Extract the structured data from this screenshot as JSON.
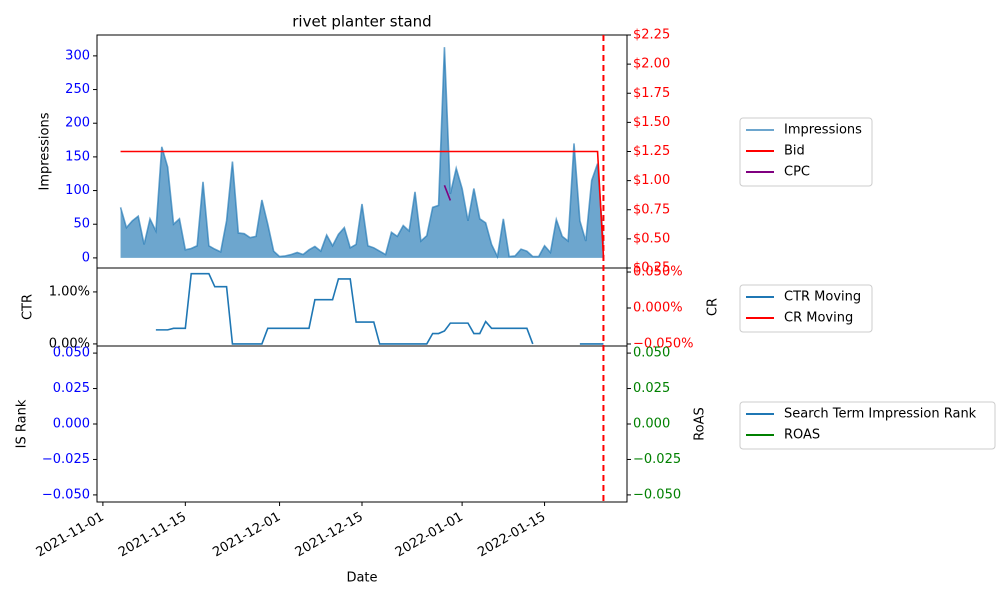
{
  "chart_data": {
    "type": "line",
    "title": "rivet planter stand",
    "xlabel": "Date",
    "xlim": [
      "2021-10-31",
      "2022-01-29"
    ],
    "xticks": [
      "2021-11-01",
      "2021-11-15",
      "2021-12-01",
      "2021-12-15",
      "2022-01-01",
      "2022-01-15"
    ],
    "vline": "2022-01-25",
    "vline_color": "#ff0000",
    "x": [
      "2021-11-04",
      "2021-11-05",
      "2021-11-06",
      "2021-11-07",
      "2021-11-08",
      "2021-11-09",
      "2021-11-10",
      "2021-11-11",
      "2021-11-12",
      "2021-11-13",
      "2021-11-14",
      "2021-11-15",
      "2021-11-16",
      "2021-11-17",
      "2021-11-18",
      "2021-11-19",
      "2021-11-20",
      "2021-11-21",
      "2021-11-22",
      "2021-11-23",
      "2021-11-24",
      "2021-11-25",
      "2021-11-26",
      "2021-11-27",
      "2021-11-28",
      "2021-11-29",
      "2021-11-30",
      "2021-12-01",
      "2021-12-02",
      "2021-12-03",
      "2021-12-04",
      "2021-12-05",
      "2021-12-06",
      "2021-12-07",
      "2021-12-08",
      "2021-12-09",
      "2021-12-10",
      "2021-12-11",
      "2021-12-12",
      "2021-12-13",
      "2021-12-14",
      "2021-12-15",
      "2021-12-16",
      "2021-12-17",
      "2021-12-18",
      "2021-12-19",
      "2021-12-20",
      "2021-12-21",
      "2021-12-22",
      "2021-12-23",
      "2021-12-24",
      "2021-12-25",
      "2021-12-26",
      "2021-12-27",
      "2021-12-28",
      "2021-12-29",
      "2021-12-30",
      "2021-12-31",
      "2022-01-01",
      "2022-01-02",
      "2022-01-03",
      "2022-01-04",
      "2022-01-05",
      "2022-01-06",
      "2022-01-07",
      "2022-01-08",
      "2022-01-09",
      "2022-01-10",
      "2022-01-11",
      "2022-01-12",
      "2022-01-13",
      "2022-01-14",
      "2022-01-15",
      "2022-01-16",
      "2022-01-17",
      "2022-01-18",
      "2022-01-19",
      "2022-01-20",
      "2022-01-21",
      "2022-01-22",
      "2022-01-23",
      "2022-01-24",
      "2022-01-25"
    ],
    "panels": [
      {
        "ylabel": "Impressions",
        "ylim": [
          -15,
          331
        ],
        "yticks": [
          0,
          50,
          100,
          150,
          200,
          250,
          300
        ],
        "ytick_color": "#0000ff",
        "y2lim": [
          0.25,
          2.25
        ],
        "y2ticks": [
          {
            "value": 0.25,
            "label": "$0.25"
          },
          {
            "value": 0.5,
            "label": "$0.50"
          },
          {
            "value": 0.75,
            "label": "$0.75"
          },
          {
            "value": 1.0,
            "label": "$1.00"
          },
          {
            "value": 1.25,
            "label": "$1.25"
          },
          {
            "value": 1.5,
            "label": "$1.50"
          },
          {
            "value": 1.75,
            "label": "$1.75"
          },
          {
            "value": 2.0,
            "label": "$2.00"
          },
          {
            "value": 2.25,
            "label": "$2.25"
          }
        ],
        "y2tick_color": "#ff0000",
        "series": [
          {
            "name": "Impressions",
            "color": "#1f77b4",
            "style": "area",
            "alpha": 0.65,
            "values": [
              75,
              45,
              55,
              62,
              20,
              58,
              40,
              165,
              135,
              50,
              58,
              12,
              14,
              18,
              113,
              18,
              13,
              9,
              55,
              143,
              37,
              36,
              30,
              32,
              86,
              50,
              10,
              2,
              3,
              5,
              8,
              5,
              12,
              17,
              10,
              34,
              18,
              35,
              45,
              15,
              20,
              80,
              18,
              15,
              10,
              5,
              38,
              32,
              48,
              40,
              98,
              25,
              33,
              75,
              78,
              313,
              95,
              133,
              103,
              55,
              103,
              58,
              52,
              20,
              2,
              58,
              2,
              3,
              13,
              10,
              2,
              2,
              18,
              8,
              57,
              32,
              25,
              170,
              55,
              25,
              115,
              140,
              20
            ]
          },
          {
            "name": "Bid",
            "color": "#ff0000",
            "axis": "y2",
            "values": [
              1.25,
              1.25,
              1.25,
              1.25,
              1.25,
              1.25,
              1.25,
              1.25,
              1.25,
              1.25,
              1.25,
              1.25,
              1.25,
              1.25,
              1.25,
              1.25,
              1.25,
              1.25,
              1.25,
              1.25,
              1.25,
              1.25,
              1.25,
              1.25,
              1.25,
              1.25,
              1.25,
              1.25,
              1.25,
              1.25,
              1.25,
              1.25,
              1.25,
              1.25,
              1.25,
              1.25,
              1.25,
              1.25,
              1.25,
              1.25,
              1.25,
              1.25,
              1.25,
              1.25,
              1.25,
              1.25,
              1.25,
              1.25,
              1.25,
              1.25,
              1.25,
              1.25,
              1.25,
              1.25,
              1.25,
              1.25,
              1.25,
              1.25,
              1.25,
              1.25,
              1.25,
              1.25,
              1.25,
              1.25,
              1.25,
              1.25,
              1.25,
              1.25,
              1.25,
              1.25,
              1.25,
              1.25,
              1.25,
              1.25,
              1.25,
              1.25,
              1.25,
              1.25,
              1.25,
              1.25,
              1.25,
              1.25,
              0.35
            ]
          },
          {
            "name": "CPC",
            "color": "#800080",
            "axis": "y2",
            "values": [
              null,
              null,
              null,
              null,
              null,
              null,
              null,
              null,
              null,
              null,
              null,
              null,
              null,
              null,
              null,
              null,
              null,
              null,
              null,
              null,
              null,
              null,
              null,
              null,
              null,
              null,
              null,
              null,
              null,
              null,
              null,
              null,
              null,
              null,
              null,
              null,
              null,
              null,
              null,
              null,
              null,
              null,
              null,
              null,
              null,
              null,
              null,
              null,
              null,
              null,
              null,
              null,
              null,
              null,
              null,
              0.96,
              0.83,
              null,
              null,
              null,
              null,
              null,
              null,
              null,
              null,
              null,
              null,
              null,
              null,
              null,
              null,
              null,
              null,
              null,
              null,
              null,
              null,
              null,
              null,
              null,
              null,
              null,
              null
            ]
          }
        ]
      },
      {
        "ylabel": "CTR",
        "y2label": "CR",
        "ylim": [
          -0.04,
          1.46
        ],
        "yticks": [
          {
            "value": 0,
            "label": "0.00%"
          },
          {
            "value": 1,
            "label": "1.00%"
          }
        ],
        "ytick_color": "#000000",
        "y2lim": [
          -0.0528,
          0.0556
        ],
        "y2ticks": [
          {
            "value": -0.05,
            "label": "−0.050%"
          },
          {
            "value": 0,
            "label": "0.000%"
          },
          {
            "value": 0.05,
            "label": "0.050%"
          }
        ],
        "y2tick_color": "#ff0000",
        "series": [
          {
            "name": "CTR Moving",
            "color": "#1f77b4",
            "values": [
              null,
              null,
              null,
              null,
              null,
              null,
              0.27,
              0.27,
              0.27,
              0.3,
              0.3,
              0.3,
              1.35,
              1.35,
              1.35,
              1.35,
              1.1,
              1.1,
              1.1,
              0,
              0,
              0,
              0,
              0,
              0,
              0.3,
              0.3,
              0.3,
              0.3,
              0.3,
              0.3,
              0.3,
              0.3,
              0.85,
              0.85,
              0.85,
              0.85,
              1.25,
              1.25,
              1.25,
              0.42,
              0.42,
              0.42,
              0.42,
              0,
              0,
              0,
              0,
              0,
              0,
              0,
              0,
              0,
              0.2,
              0.2,
              0.25,
              0.4,
              0.4,
              0.4,
              0.4,
              0.2,
              0.2,
              0.43,
              0.3,
              0.3,
              0.3,
              0.3,
              0.3,
              0.3,
              0.3,
              0,
              null,
              null,
              null,
              null,
              null,
              null,
              null,
              0,
              0,
              0,
              0,
              0
            ]
          },
          {
            "name": "CR Moving",
            "color": "#ff0000",
            "axis": "y2",
            "values": [
              null,
              null,
              null,
              null,
              null,
              null,
              null,
              null,
              null,
              null,
              null,
              null,
              null,
              null,
              null,
              null,
              null,
              null,
              null,
              null,
              null,
              null,
              null,
              null,
              null,
              null,
              null,
              null,
              null,
              null,
              null,
              null,
              null,
              null,
              null,
              null,
              null,
              null,
              null,
              null,
              null,
              null,
              null,
              null,
              null,
              null,
              null,
              null,
              null,
              null,
              null,
              null,
              null,
              null,
              null,
              null,
              null,
              null,
              null,
              null,
              null,
              null,
              null,
              null,
              null,
              null,
              null,
              null,
              null,
              null,
              null,
              null,
              null,
              null,
              null,
              null,
              null,
              null,
              null,
              null,
              null,
              null,
              null
            ]
          }
        ]
      },
      {
        "ylabel": "IS Rank",
        "y2label": "RoAS",
        "ylim": [
          -0.055,
          0.055
        ],
        "yticks": [
          {
            "value": -0.05,
            "label": "−0.050"
          },
          {
            "value": -0.025,
            "label": "−0.025"
          },
          {
            "value": 0,
            "label": "0.000"
          },
          {
            "value": 0.025,
            "label": "0.025"
          },
          {
            "value": 0.05,
            "label": "0.050"
          }
        ],
        "ytick_color": "#0000ff",
        "y2lim": [
          -0.055,
          0.055
        ],
        "y2ticks": [
          {
            "value": -0.05,
            "label": "−0.050"
          },
          {
            "value": -0.025,
            "label": "−0.025"
          },
          {
            "value": 0,
            "label": "0.000"
          },
          {
            "value": 0.025,
            "label": "0.025"
          },
          {
            "value": 0.05,
            "label": "0.050"
          }
        ],
        "y2tick_color": "#008000",
        "series": [
          {
            "name": "Search Term Impression Rank",
            "color": "#1f77b4",
            "values": [
              null,
              null,
              null,
              null,
              null,
              null,
              null,
              null,
              null,
              null,
              null,
              null,
              null,
              null,
              null,
              null,
              null,
              null,
              null,
              null,
              null,
              null,
              null,
              null,
              null,
              null,
              null,
              null,
              null,
              null,
              null,
              null,
              null,
              null,
              null,
              null,
              null,
              null,
              null,
              null,
              null,
              null,
              null,
              null,
              null,
              null,
              null,
              null,
              null,
              null,
              null,
              null,
              null,
              null,
              null,
              null,
              null,
              null,
              null,
              null,
              null,
              null,
              null,
              null,
              null,
              null,
              null,
              null,
              null,
              null,
              null,
              null,
              null,
              null,
              null,
              null,
              null,
              null,
              null,
              null,
              null,
              null,
              null
            ]
          },
          {
            "name": "ROAS",
            "color": "#008000",
            "axis": "y2",
            "values": [
              null,
              null,
              null,
              null,
              null,
              null,
              null,
              null,
              null,
              null,
              null,
              null,
              null,
              null,
              null,
              null,
              null,
              null,
              null,
              null,
              null,
              null,
              null,
              null,
              null,
              null,
              null,
              null,
              null,
              null,
              null,
              null,
              null,
              null,
              null,
              null,
              null,
              null,
              null,
              null,
              null,
              null,
              null,
              null,
              null,
              null,
              null,
              null,
              null,
              null,
              null,
              null,
              null,
              null,
              null,
              null,
              null,
              null,
              null,
              null,
              null,
              null,
              null,
              null,
              null,
              null,
              null,
              null,
              null,
              null,
              null,
              null,
              null,
              null,
              null,
              null,
              null,
              null,
              null,
              null,
              null,
              null,
              null
            ]
          }
        ]
      }
    ]
  }
}
